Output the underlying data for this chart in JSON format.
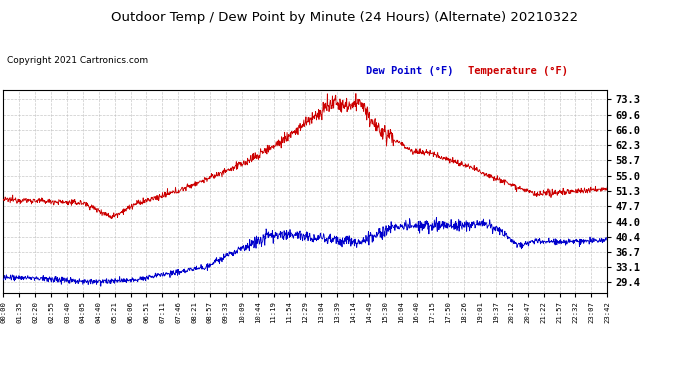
{
  "title": "Outdoor Temp / Dew Point by Minute (24 Hours) (Alternate) 20210322",
  "copyright": "Copyright 2021 Cartronics.com",
  "legend_dew": "Dew Point (°F)",
  "legend_temp": "Temperature (°F)",
  "yticks": [
    29.4,
    33.1,
    36.7,
    40.4,
    44.0,
    47.7,
    51.3,
    55.0,
    58.7,
    62.3,
    66.0,
    69.6,
    73.3
  ],
  "ylim": [
    27.0,
    75.5
  ],
  "background_color": "#ffffff",
  "grid_color": "#bbbbbb",
  "temp_color": "#cc0000",
  "dew_color": "#0000cc",
  "title_color": "#000000",
  "copyright_color": "#000000",
  "n_points": 1440,
  "xtick_labels": [
    "00:00",
    "01:35",
    "02:20",
    "02:55",
    "03:40",
    "04:05",
    "04:40",
    "05:21",
    "06:06",
    "06:51",
    "07:11",
    "07:46",
    "08:21",
    "08:57",
    "09:33",
    "10:09",
    "10:44",
    "11:19",
    "11:54",
    "12:29",
    "13:04",
    "13:39",
    "14:14",
    "14:49",
    "15:30",
    "16:04",
    "16:40",
    "17:15",
    "17:50",
    "18:26",
    "19:01",
    "19:37",
    "20:12",
    "20:47",
    "21:22",
    "21:57",
    "22:32",
    "23:07",
    "23:42"
  ]
}
